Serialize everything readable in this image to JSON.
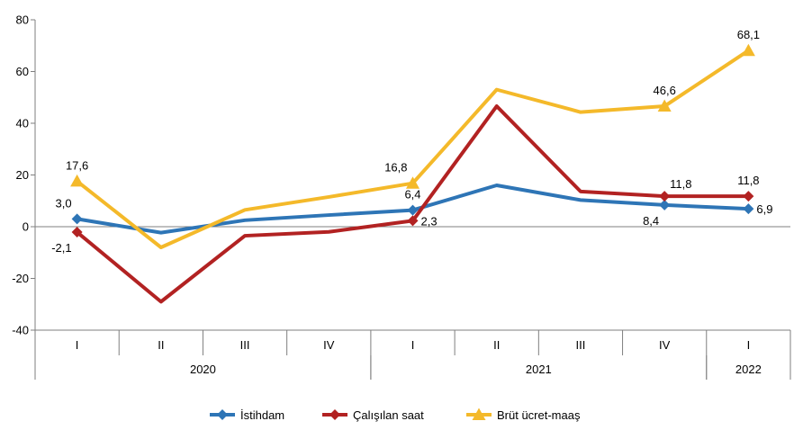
{
  "chart_data": {
    "type": "line",
    "title": "",
    "xlabel": "",
    "ylabel": "",
    "ylim": [
      -40,
      80
    ],
    "yticks": [
      -40,
      -20,
      0,
      20,
      40,
      60,
      80
    ],
    "grid": false,
    "legend_position": "bottom",
    "categories": [
      "I",
      "II",
      "III",
      "IV",
      "I",
      "II",
      "III",
      "IV",
      "I"
    ],
    "year_groups": [
      {
        "label": "2020",
        "start": 0,
        "end": 3
      },
      {
        "label": "2021",
        "start": 4,
        "end": 7
      },
      {
        "label": "2022",
        "start": 8,
        "end": 8
      }
    ],
    "series": [
      {
        "name": "İstihdam",
        "color": "#2E75B6",
        "marker": "diamond",
        "values": [
          3.0,
          -2.3,
          2.5,
          4.5,
          6.4,
          16.0,
          10.3,
          8.4,
          6.9
        ],
        "labels": [
          {
            "index": 0,
            "text": "3,0",
            "position": "above-left"
          },
          {
            "index": 4,
            "text": "6,4",
            "position": "above"
          },
          {
            "index": 7,
            "text": "8,4",
            "position": "below-left"
          },
          {
            "index": 8,
            "text": "6,9",
            "position": "right"
          }
        ]
      },
      {
        "name": "Çalışılan saat",
        "color": "#B22222",
        "marker": "diamond",
        "values": [
          -2.1,
          -29.0,
          -3.5,
          -2.0,
          2.3,
          46.6,
          13.6,
          11.8,
          11.8
        ],
        "labels": [
          {
            "index": 0,
            "text": "-2,1",
            "position": "below-left"
          },
          {
            "index": 4,
            "text": "2,3",
            "position": "right"
          },
          {
            "index": 7,
            "text": "11,8",
            "position": "above-right"
          },
          {
            "index": 8,
            "text": "11,8",
            "position": "above"
          }
        ]
      },
      {
        "name": "Brüt ücret-maaş",
        "color": "#F4B92A",
        "marker": "triangle",
        "values": [
          17.6,
          -8.0,
          6.5,
          11.5,
          16.8,
          53.0,
          44.3,
          46.6,
          68.1
        ],
        "labels": [
          {
            "index": 0,
            "text": "17,6",
            "position": "above"
          },
          {
            "index": 4,
            "text": "16,8",
            "position": "above-left"
          },
          {
            "index": 7,
            "text": "46,6",
            "position": "above"
          },
          {
            "index": 8,
            "text": "68,1",
            "position": "above"
          }
        ]
      }
    ]
  }
}
